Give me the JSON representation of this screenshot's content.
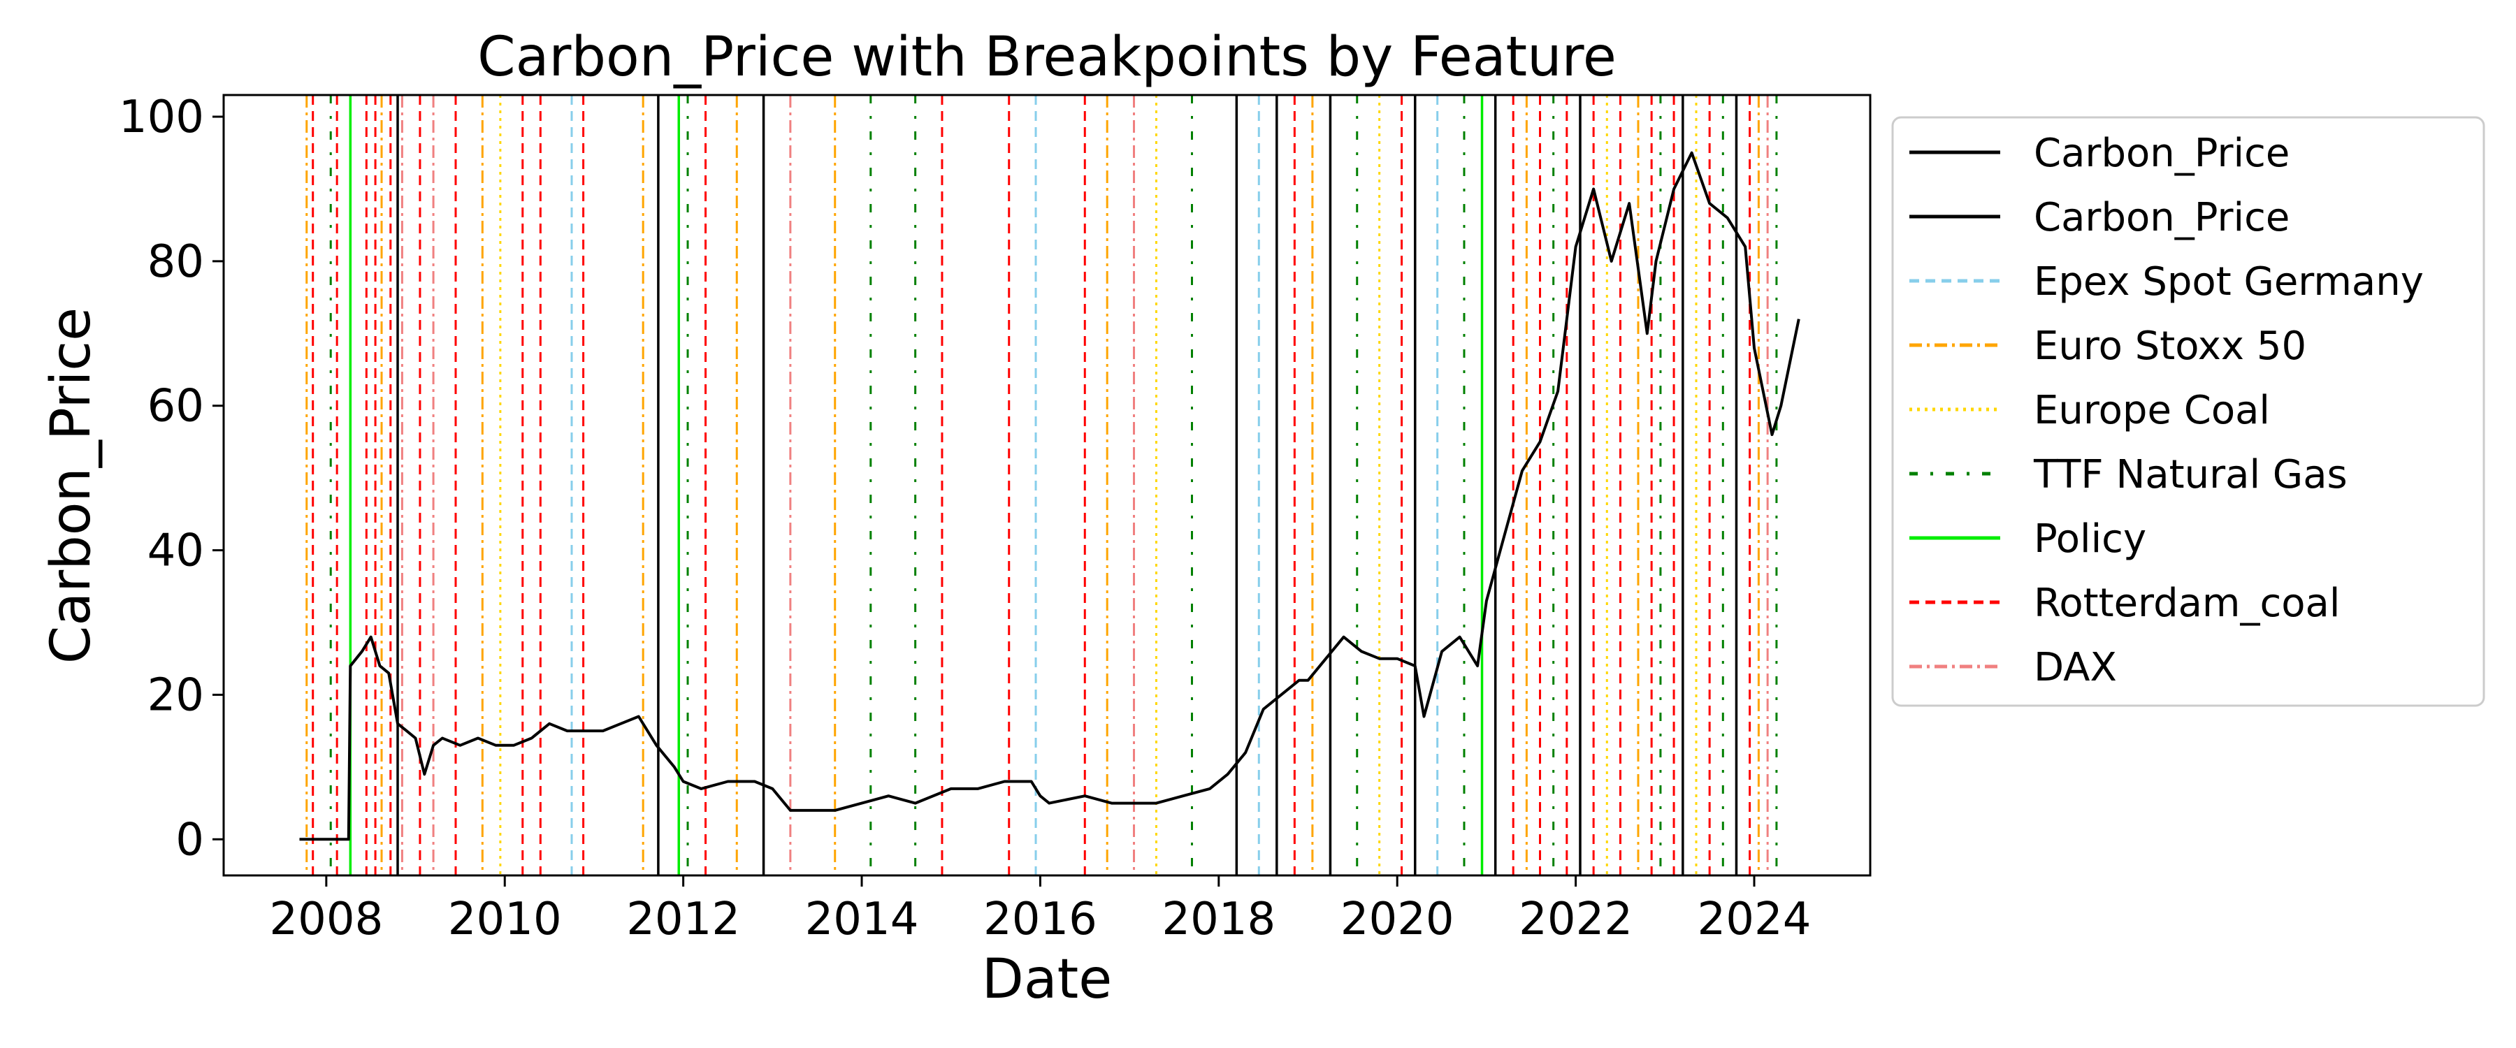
{
  "chart_data": {
    "type": "line",
    "title": "Carbon_Price with Breakpoints by Feature",
    "xlabel": "Date",
    "ylabel": "Carbon_Price",
    "xlim": [
      2006.85,
      2025.3
    ],
    "ylim": [
      -5,
      103
    ],
    "x_ticks": [
      2008,
      2010,
      2012,
      2014,
      2016,
      2018,
      2020,
      2022,
      2024
    ],
    "y_ticks": [
      0,
      20,
      40,
      60,
      80,
      100
    ],
    "grid": false,
    "legend_position": "outside-right",
    "series": [
      {
        "name": "Carbon_Price",
        "color": "#000000",
        "x": [
          2007.7,
          2008.0,
          2008.25,
          2008.27,
          2008.4,
          2008.5,
          2008.6,
          2008.7,
          2008.8,
          2008.9,
          2009.0,
          2009.1,
          2009.2,
          2009.3,
          2009.5,
          2009.7,
          2009.9,
          2010.1,
          2010.3,
          2010.5,
          2010.7,
          2010.9,
          2011.1,
          2011.3,
          2011.5,
          2011.7,
          2011.9,
          2012.0,
          2012.2,
          2012.5,
          2012.8,
          2013.0,
          2013.2,
          2013.4,
          2013.7,
          2014.0,
          2014.3,
          2014.6,
          2015.0,
          2015.3,
          2015.6,
          2015.9,
          2016.0,
          2016.1,
          2016.5,
          2016.8,
          2017.0,
          2017.3,
          2017.6,
          2017.9,
          2018.1,
          2018.3,
          2018.5,
          2018.7,
          2018.9,
          2019.0,
          2019.2,
          2019.4,
          2019.6,
          2019.8,
          2020.0,
          2020.2,
          2020.3,
          2020.5,
          2020.7,
          2020.9,
          2021.0,
          2021.2,
          2021.4,
          2021.6,
          2021.8,
          2022.0,
          2022.2,
          2022.4,
          2022.6,
          2022.8,
          2022.9,
          2023.1,
          2023.3,
          2023.5,
          2023.7,
          2023.9,
          2024.0,
          2024.2,
          2024.3,
          2024.5
        ],
        "values": [
          0,
          0,
          0,
          24,
          26,
          28,
          24,
          23,
          16,
          15,
          14,
          9,
          13,
          14,
          13,
          14,
          13,
          13,
          14,
          16,
          15,
          15,
          15,
          16,
          17,
          13,
          10,
          8,
          7,
          8,
          8,
          7,
          4,
          4,
          4,
          5,
          6,
          5,
          7,
          7,
          8,
          8,
          6,
          5,
          6,
          5,
          5,
          5,
          6,
          7,
          9,
          12,
          18,
          20,
          22,
          22,
          25,
          28,
          26,
          25,
          25,
          24,
          17,
          26,
          28,
          24,
          33,
          42,
          51,
          55,
          62,
          82,
          90,
          80,
          88,
          70,
          80,
          90,
          95,
          88,
          86,
          82,
          68,
          56,
          60,
          72
        ]
      }
    ],
    "breakpoint_styles": [
      {
        "name": "Carbon_Price",
        "color": "#000000",
        "dash": "solid"
      },
      {
        "name": "Epex Spot Germany",
        "color": "#87CEEB",
        "dash": "dashed"
      },
      {
        "name": "Euro Stoxx 50",
        "color": "#FFA500",
        "dash": "dashdot"
      },
      {
        "name": "Europe Coal",
        "color": "#FFD700",
        "dash": "dotted"
      },
      {
        "name": "TTF Natural Gas",
        "color": "#008000",
        "dash": "dashdot-sparse"
      },
      {
        "name": "Policy",
        "color": "#00EE00",
        "dash": "solid"
      },
      {
        "name": "Rotterdam_coal",
        "color": "#FF0000",
        "dash": "dashed"
      },
      {
        "name": "DAX",
        "color": "#F08080",
        "dash": "dashdot"
      }
    ],
    "legend_entries": [
      {
        "label": "Carbon_Price",
        "style": 0
      },
      {
        "label": "Carbon_Price",
        "style": 0
      },
      {
        "label": "Epex Spot Germany",
        "style": 1
      },
      {
        "label": "Euro Stoxx 50",
        "style": 2
      },
      {
        "label": "Europe Coal",
        "style": 3
      },
      {
        "label": "TTF Natural Gas",
        "style": 4
      },
      {
        "label": "Policy",
        "style": 5
      },
      {
        "label": "Rotterdam_coal",
        "style": 6
      },
      {
        "label": "DAX",
        "style": 7
      }
    ],
    "breakpoints": [
      {
        "x": 2007.78,
        "style": 2
      },
      {
        "x": 2007.85,
        "style": 6
      },
      {
        "x": 2008.05,
        "style": 4
      },
      {
        "x": 2008.12,
        "style": 6
      },
      {
        "x": 2008.27,
        "style": 5
      },
      {
        "x": 2008.45,
        "style": 6
      },
      {
        "x": 2008.55,
        "style": 6
      },
      {
        "x": 2008.62,
        "style": 2
      },
      {
        "x": 2008.72,
        "style": 6
      },
      {
        "x": 2008.8,
        "style": 0
      },
      {
        "x": 2008.85,
        "style": 7
      },
      {
        "x": 2009.05,
        "style": 6
      },
      {
        "x": 2009.2,
        "style": 7
      },
      {
        "x": 2009.45,
        "style": 6
      },
      {
        "x": 2009.75,
        "style": 2
      },
      {
        "x": 2009.95,
        "style": 3
      },
      {
        "x": 2010.2,
        "style": 6
      },
      {
        "x": 2010.4,
        "style": 6
      },
      {
        "x": 2010.75,
        "style": 1
      },
      {
        "x": 2010.88,
        "style": 6
      },
      {
        "x": 2011.55,
        "style": 2
      },
      {
        "x": 2011.72,
        "style": 0
      },
      {
        "x": 2011.95,
        "style": 5
      },
      {
        "x": 2012.05,
        "style": 4
      },
      {
        "x": 2012.25,
        "style": 6
      },
      {
        "x": 2012.6,
        "style": 2
      },
      {
        "x": 2012.9,
        "style": 0
      },
      {
        "x": 2013.2,
        "style": 7
      },
      {
        "x": 2013.7,
        "style": 2
      },
      {
        "x": 2014.1,
        "style": 4
      },
      {
        "x": 2014.6,
        "style": 4
      },
      {
        "x": 2014.9,
        "style": 6
      },
      {
        "x": 2015.65,
        "style": 6
      },
      {
        "x": 2015.95,
        "style": 1
      },
      {
        "x": 2016.5,
        "style": 6
      },
      {
        "x": 2016.75,
        "style": 2
      },
      {
        "x": 2017.05,
        "style": 7
      },
      {
        "x": 2017.3,
        "style": 3
      },
      {
        "x": 2017.7,
        "style": 4
      },
      {
        "x": 2018.2,
        "style": 0
      },
      {
        "x": 2018.45,
        "style": 1
      },
      {
        "x": 2018.65,
        "style": 0
      },
      {
        "x": 2018.85,
        "style": 6
      },
      {
        "x": 2019.05,
        "style": 2
      },
      {
        "x": 2019.25,
        "style": 0
      },
      {
        "x": 2019.55,
        "style": 4
      },
      {
        "x": 2019.8,
        "style": 3
      },
      {
        "x": 2020.05,
        "style": 6
      },
      {
        "x": 2020.2,
        "style": 0
      },
      {
        "x": 2020.45,
        "style": 1
      },
      {
        "x": 2020.75,
        "style": 4
      },
      {
        "x": 2020.95,
        "style": 5
      },
      {
        "x": 2021.1,
        "style": 0
      },
      {
        "x": 2021.3,
        "style": 6
      },
      {
        "x": 2021.45,
        "style": 2
      },
      {
        "x": 2021.6,
        "style": 6
      },
      {
        "x": 2021.75,
        "style": 4
      },
      {
        "x": 2021.9,
        "style": 6
      },
      {
        "x": 2022.05,
        "style": 0
      },
      {
        "x": 2022.2,
        "style": 6
      },
      {
        "x": 2022.35,
        "style": 3
      },
      {
        "x": 2022.5,
        "style": 6
      },
      {
        "x": 2022.7,
        "style": 2
      },
      {
        "x": 2022.85,
        "style": 6
      },
      {
        "x": 2022.95,
        "style": 4
      },
      {
        "x": 2023.1,
        "style": 6
      },
      {
        "x": 2023.2,
        "style": 0
      },
      {
        "x": 2023.35,
        "style": 3
      },
      {
        "x": 2023.5,
        "style": 6
      },
      {
        "x": 2023.65,
        "style": 4
      },
      {
        "x": 2023.8,
        "style": 0
      },
      {
        "x": 2023.95,
        "style": 6
      },
      {
        "x": 2024.05,
        "style": 2
      },
      {
        "x": 2024.15,
        "style": 7
      },
      {
        "x": 2024.25,
        "style": 4
      }
    ]
  }
}
